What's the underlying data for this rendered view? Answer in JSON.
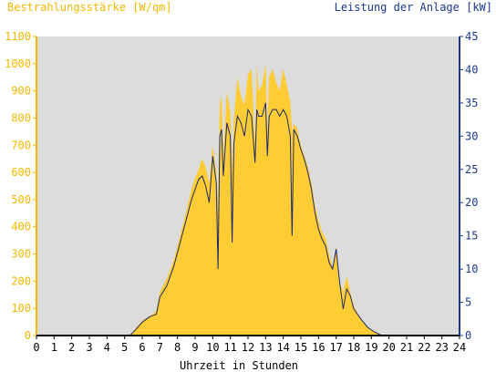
{
  "colors": {
    "plot_background": "#dcdcdc",
    "irradiance_fill": "#ffcc33",
    "irradiance_axis": "#f5b800",
    "power_line": "#1a2a6c",
    "power_axis": "#1a3a8c",
    "x_axis": "#000000"
  },
  "chart_data": {
    "type": "area",
    "title_left": "Bestrahlungsstärke [W/qm]",
    "title_right": "Leistung der Anlage [kW]",
    "xlabel": "Uhrzeit in Stunden",
    "xlim": [
      0,
      24
    ],
    "ylim_left": [
      0,
      1100
    ],
    "ylim_right": [
      0,
      45
    ],
    "x_ticks": [
      "0",
      "1",
      "2",
      "3",
      "4",
      "5",
      "6",
      "7",
      "8",
      "9",
      "10",
      "11",
      "12",
      "13",
      "14",
      "15",
      "16",
      "17",
      "18",
      "19",
      "20",
      "21",
      "22",
      "23",
      "24"
    ],
    "y_ticks_left": [
      "0",
      "100",
      "200",
      "300",
      "400",
      "500",
      "600",
      "700",
      "800",
      "900",
      "1000",
      "1100"
    ],
    "y_ticks_right": [
      "0",
      "5",
      "10",
      "15",
      "20",
      "25",
      "30",
      "35",
      "40",
      "45"
    ],
    "series": [
      {
        "kind": "area",
        "axis": "left",
        "x": [
          0,
          5.3,
          5.6,
          6.0,
          6.4,
          6.8,
          7.0,
          7.4,
          7.8,
          8.0,
          8.4,
          8.8,
          9.0,
          9.2,
          9.4,
          9.6,
          9.8,
          10.0,
          10.2,
          10.3,
          10.4,
          10.5,
          10.6,
          10.8,
          11.0,
          11.1,
          11.2,
          11.4,
          11.6,
          11.8,
          12.0,
          12.2,
          12.4,
          12.5,
          12.6,
          12.8,
          13.0,
          13.1,
          13.2,
          13.4,
          13.6,
          13.8,
          14.0,
          14.2,
          14.4,
          14.5,
          14.6,
          14.8,
          15.0,
          15.2,
          15.4,
          15.6,
          15.8,
          16.0,
          16.2,
          16.4,
          16.6,
          16.8,
          17.0,
          17.2,
          17.4,
          17.6,
          17.8,
          18.0,
          18.4,
          18.8,
          19.2,
          19.6,
          20.0,
          24
        ],
        "y": [
          0,
          0,
          25,
          55,
          70,
          90,
          160,
          210,
          280,
          330,
          430,
          540,
          580,
          610,
          650,
          620,
          560,
          700,
          600,
          450,
          850,
          880,
          650,
          900,
          820,
          600,
          800,
          950,
          880,
          850,
          960,
          980,
          700,
          1000,
          900,
          920,
          1000,
          750,
          950,
          980,
          930,
          900,
          980,
          920,
          860,
          750,
          780,
          760,
          700,
          660,
          620,
          560,
          480,
          420,
          380,
          360,
          300,
          250,
          330,
          200,
          160,
          220,
          160,
          110,
          60,
          30,
          12,
          2,
          0,
          0
        ]
      },
      {
        "kind": "line",
        "axis": "right",
        "x": [
          0,
          5.3,
          5.6,
          6.0,
          6.4,
          6.8,
          7.0,
          7.4,
          7.8,
          8.0,
          8.4,
          8.8,
          9.0,
          9.2,
          9.4,
          9.6,
          9.8,
          10.0,
          10.2,
          10.3,
          10.4,
          10.5,
          10.6,
          10.8,
          11.0,
          11.1,
          11.2,
          11.4,
          11.6,
          11.8,
          12.0,
          12.2,
          12.4,
          12.5,
          12.6,
          12.8,
          13.0,
          13.1,
          13.2,
          13.4,
          13.6,
          13.8,
          14.0,
          14.2,
          14.4,
          14.5,
          14.6,
          14.8,
          15.0,
          15.2,
          15.4,
          15.6,
          15.8,
          16.0,
          16.2,
          16.4,
          16.6,
          16.8,
          17.0,
          17.2,
          17.4,
          17.6,
          17.8,
          18.0,
          18.4,
          18.8,
          19.2,
          19.6,
          20.0,
          24
        ],
        "y": [
          0,
          0,
          0.8,
          2,
          2.8,
          3.2,
          5.8,
          7.5,
          10.5,
          12.5,
          16.5,
          20.5,
          22,
          23.5,
          24,
          22.5,
          20,
          27,
          23,
          10,
          30,
          31,
          24,
          32,
          30,
          14,
          29,
          33,
          32,
          30,
          34,
          33,
          26,
          34,
          33,
          33,
          35,
          27,
          33,
          34,
          34,
          33,
          34,
          33,
          30,
          15,
          31,
          30,
          28,
          26.5,
          24.5,
          22,
          18.5,
          16,
          14.5,
          13.5,
          11,
          10,
          13,
          8,
          4,
          7,
          6,
          4,
          2.5,
          1.2,
          0.5,
          0,
          0,
          0
        ]
      }
    ]
  }
}
